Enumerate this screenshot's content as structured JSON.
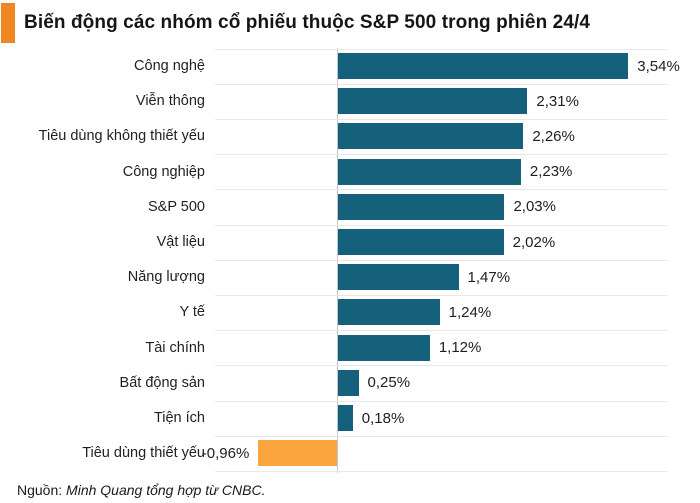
{
  "header": {
    "title": "Biến động các nhóm cổ phiếu thuộc S&P 500 trong phiên 24/4",
    "accent_color": "#ef8723"
  },
  "chart_data": {
    "type": "bar",
    "orientation": "horizontal",
    "title": "Biến động các nhóm cổ phiếu thuộc S&P 500 trong phiên 24/4",
    "categories": [
      "Công nghệ",
      "Viễn thông",
      "Tiêu dùng không thiết yếu",
      "Công nghiệp",
      "S&P 500",
      "Vật liệu",
      "Năng lượng",
      "Y tế",
      "Tài chính",
      "Bất động sản",
      "Tiện ích",
      "Tiêu dùng thiết yếu"
    ],
    "values": [
      3.54,
      2.31,
      2.26,
      2.23,
      2.03,
      2.02,
      1.47,
      1.24,
      1.12,
      0.25,
      0.18,
      -0.96
    ],
    "value_labels": [
      "3,54%",
      "2,31%",
      "2,26%",
      "2,23%",
      "2,03%",
      "2,02%",
      "1,47%",
      "1,24%",
      "1,12%",
      "0,25%",
      "0,18%",
      "-0,96%"
    ],
    "xlabel": "",
    "ylabel": "",
    "xlim": [
      -1.2,
      4.4
    ],
    "grid": true,
    "legend": false,
    "positive_color": "#15607a",
    "negative_color": "#f9a43c",
    "gridline_color": "#e8e8e8",
    "axis_color": "#c3c7cb"
  },
  "footer": {
    "source_prefix": "Nguồn: ",
    "source_text": "Minh Quang tổng hợp từ CNBC."
  }
}
